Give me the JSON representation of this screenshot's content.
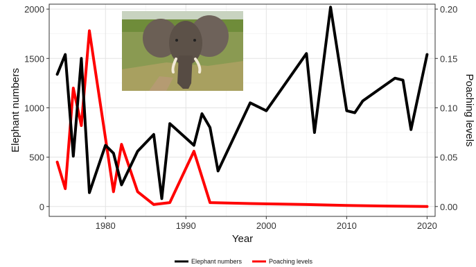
{
  "chart_data": {
    "type": "line",
    "xlabel": "Year",
    "ylabel": "Elephant numbers",
    "y2label": "Poaching levels",
    "xlim": [
      1973,
      2021
    ],
    "ylim": [
      -100,
      2050
    ],
    "y2lim": [
      -0.01,
      0.205
    ],
    "x_ticks": [
      1980,
      1990,
      2000,
      2010,
      2020
    ],
    "y_ticks": [
      0,
      500,
      1000,
      1500,
      2000
    ],
    "y2_ticks": [
      "0.00",
      "0.05",
      "0.10",
      "0.15",
      "0.20"
    ],
    "grid": true,
    "legend_position": "bottom",
    "photo": "elephant-photo",
    "series": [
      {
        "name": "Elephant numbers",
        "axis": "left",
        "color": "#000000",
        "x": [
          1974,
          1975,
          1976,
          1977,
          1978,
          1980,
          1981,
          1982,
          1984,
          1986,
          1987,
          1988,
          1991,
          1992,
          1993,
          1994,
          1998,
          2000,
          2005,
          2006,
          2008,
          2010,
          2011,
          2012,
          2016,
          2017,
          2018,
          2020
        ],
        "values": [
          1340,
          1540,
          510,
          1500,
          140,
          620,
          540,
          220,
          560,
          730,
          80,
          840,
          620,
          940,
          800,
          360,
          1050,
          970,
          1550,
          750,
          2020,
          970,
          950,
          1070,
          1300,
          1280,
          780,
          1540
        ]
      },
      {
        "name": "Poaching levels",
        "axis": "right",
        "color": "#ff0000",
        "x": [
          1974,
          1975,
          1976,
          1977,
          1978,
          1981,
          1982,
          1984,
          1986,
          1988,
          1991,
          1993,
          1998,
          2005,
          2010,
          2015,
          2020
        ],
        "values": [
          0.045,
          0.018,
          0.12,
          0.082,
          0.178,
          0.015,
          0.063,
          0.015,
          0.002,
          0.004,
          0.056,
          0.004,
          0.003,
          0.002,
          0.001,
          0.0005,
          0.0
        ]
      }
    ]
  }
}
